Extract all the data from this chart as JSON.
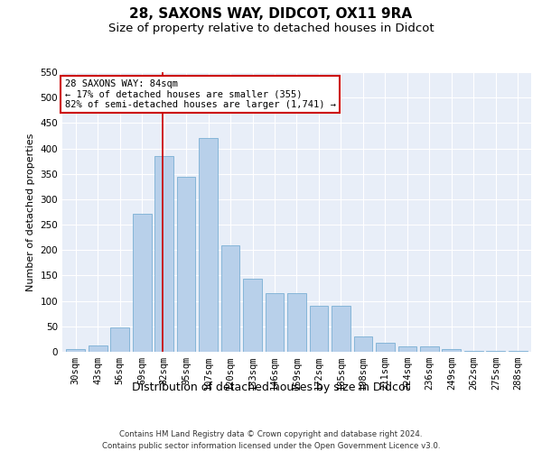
{
  "title1": "28, SAXONS WAY, DIDCOT, OX11 9RA",
  "title2": "Size of property relative to detached houses in Didcot",
  "xlabel": "Distribution of detached houses by size in Didcot",
  "ylabel": "Number of detached properties",
  "categories": [
    "30sqm",
    "43sqm",
    "56sqm",
    "69sqm",
    "82sqm",
    "95sqm",
    "107sqm",
    "120sqm",
    "133sqm",
    "146sqm",
    "159sqm",
    "172sqm",
    "185sqm",
    "198sqm",
    "211sqm",
    "224sqm",
    "236sqm",
    "249sqm",
    "262sqm",
    "275sqm",
    "288sqm"
  ],
  "values": [
    5,
    12,
    48,
    272,
    385,
    344,
    420,
    210,
    143,
    115,
    115,
    90,
    90,
    30,
    18,
    10,
    10,
    5,
    2,
    2,
    2
  ],
  "bar_color": "#b8d0ea",
  "bar_edge_color": "#7aafd4",
  "vline_index": 4,
  "vline_color": "#cc0000",
  "annotation_text": "28 SAXONS WAY: 84sqm\n← 17% of detached houses are smaller (355)\n82% of semi-detached houses are larger (1,741) →",
  "annotation_box_color": "#ffffff",
  "annotation_box_edge": "#cc0000",
  "ylim": [
    0,
    550
  ],
  "yticks": [
    0,
    50,
    100,
    150,
    200,
    250,
    300,
    350,
    400,
    450,
    500,
    550
  ],
  "bg_color": "#e8eef8",
  "footer": "Contains HM Land Registry data © Crown copyright and database right 2024.\nContains public sector information licensed under the Open Government Licence v3.0.",
  "title1_fontsize": 11,
  "title2_fontsize": 9.5,
  "xlabel_fontsize": 9,
  "ylabel_fontsize": 8,
  "tick_fontsize": 7.5,
  "ann_fontsize": 7.5
}
